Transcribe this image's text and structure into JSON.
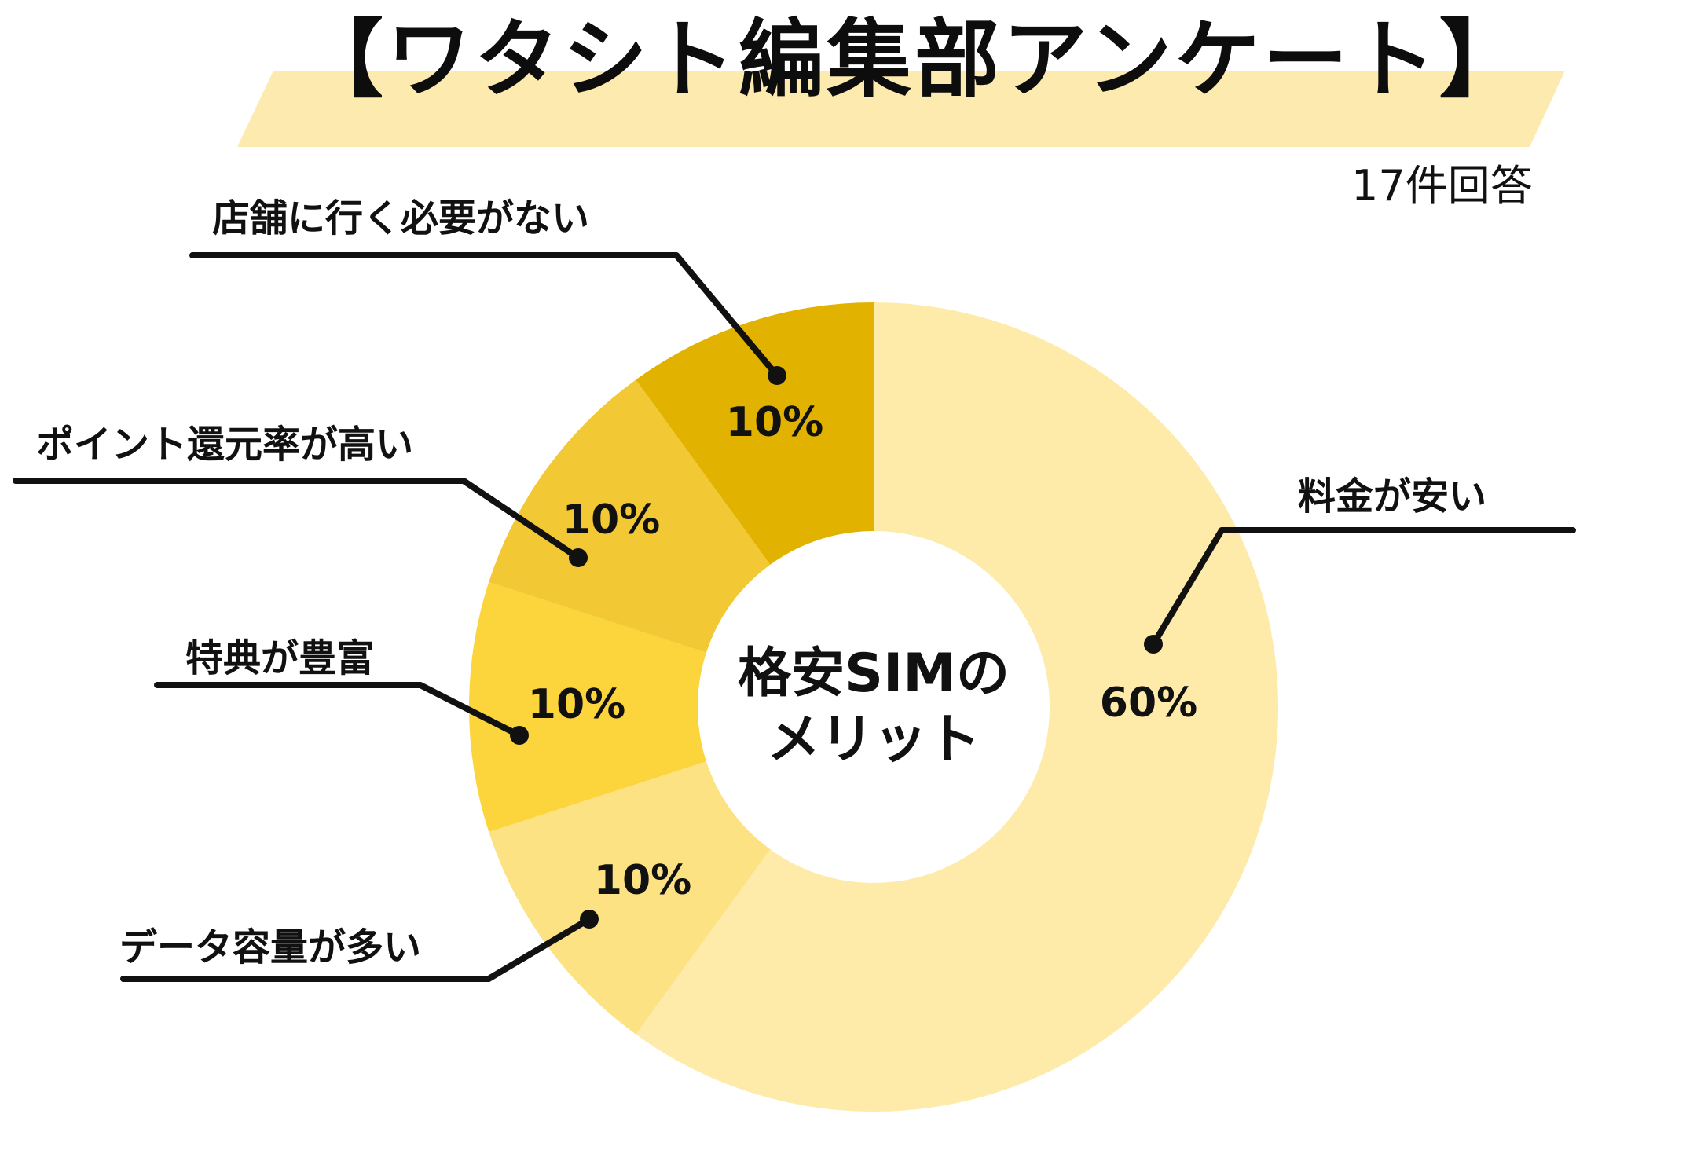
{
  "header": {
    "title": "【ワタシト編集部アンケート】",
    "response_count": "17件回答"
  },
  "colors": {
    "title_band": "#FDEAAE",
    "leader_line": "#111111"
  },
  "chart_data": {
    "type": "pie",
    "variant": "donut",
    "title": "格安SIMのメリット",
    "center_label": [
      "格安SIMの",
      "メリット"
    ],
    "subtitle": "17件回答",
    "categories": [
      "料金が安い",
      "データ容量が多い",
      "特典が豊富",
      "ポイント還元率が高い",
      "店舗に行く必要がない"
    ],
    "values": [
      60,
      10,
      10,
      10,
      10
    ],
    "value_labels": [
      "60%",
      "10%",
      "10%",
      "10%",
      "10%"
    ],
    "colors": [
      "#FEEBAA",
      "#FDE284",
      "#FCD43C",
      "#F2C834",
      "#E2B200"
    ],
    "start_angle_deg": 0,
    "direction": "clockwise",
    "legend": "none (callout labels with leader lines)"
  },
  "labels": [
    {
      "text": "料金が安い",
      "value": "60%"
    },
    {
      "text": "データ容量が多い",
      "value": "10%"
    },
    {
      "text": "特典が豊富",
      "value": "10%"
    },
    {
      "text": "ポイント還元率が高い",
      "value": "10%"
    },
    {
      "text": "店舗に行く必要がない",
      "value": "10%"
    }
  ]
}
